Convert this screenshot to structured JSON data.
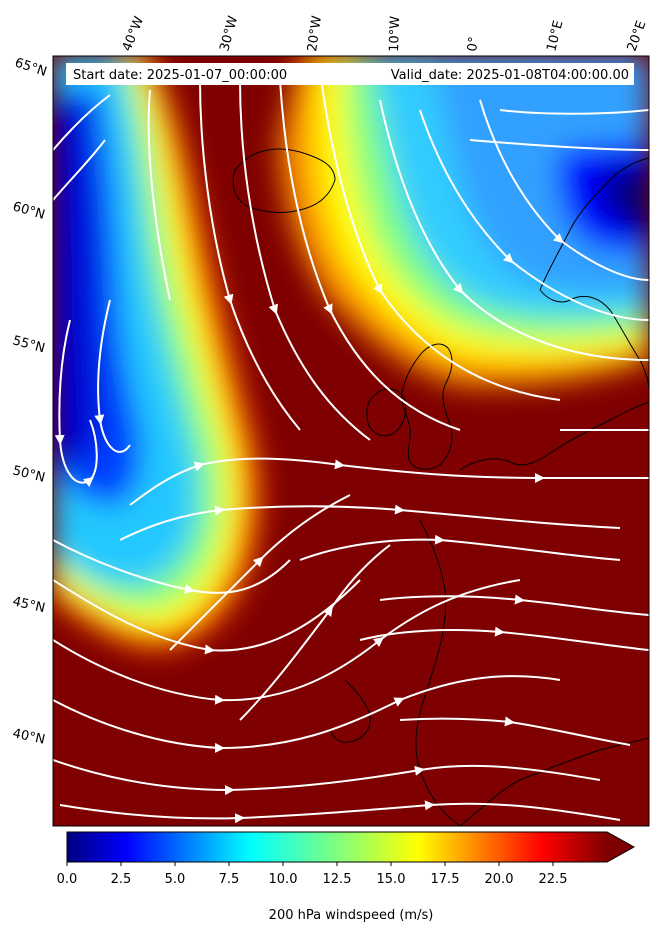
{
  "header": {
    "start_date": "Start date: 2025-01-07_00:00:00",
    "valid_date": "Valid_date: 2025-01-08T04:00:00.00"
  },
  "longitude_labels": [
    "40°W",
    "30°W",
    "20°W",
    "10°W",
    "0°",
    "10°E",
    "20°E"
  ],
  "latitude_labels": [
    "65°N",
    "60°N",
    "55°N",
    "50°N",
    "45°N",
    "40°N"
  ],
  "colorbar": {
    "ticks": [
      "0.0",
      "2.5",
      "5.0",
      "7.5",
      "10.0",
      "12.5",
      "15.0",
      "17.5",
      "20.0",
      "22.5"
    ],
    "label": "200 hPa windspeed (m/s)",
    "min": 0,
    "max": 25,
    "extend": "max",
    "colormap": "jet"
  },
  "chart_data": {
    "type": "heatmap",
    "variable": "200 hPa windspeed (m/s)",
    "overlay": "streamlines",
    "colors": {
      "low": "#00007f",
      "mid_low": "#0080ff",
      "mid": "#7fff7f",
      "mid_high": "#ff8000",
      "high": "#7f0000",
      "streamline": "#ffffff",
      "coastline": "#000000"
    }
  }
}
